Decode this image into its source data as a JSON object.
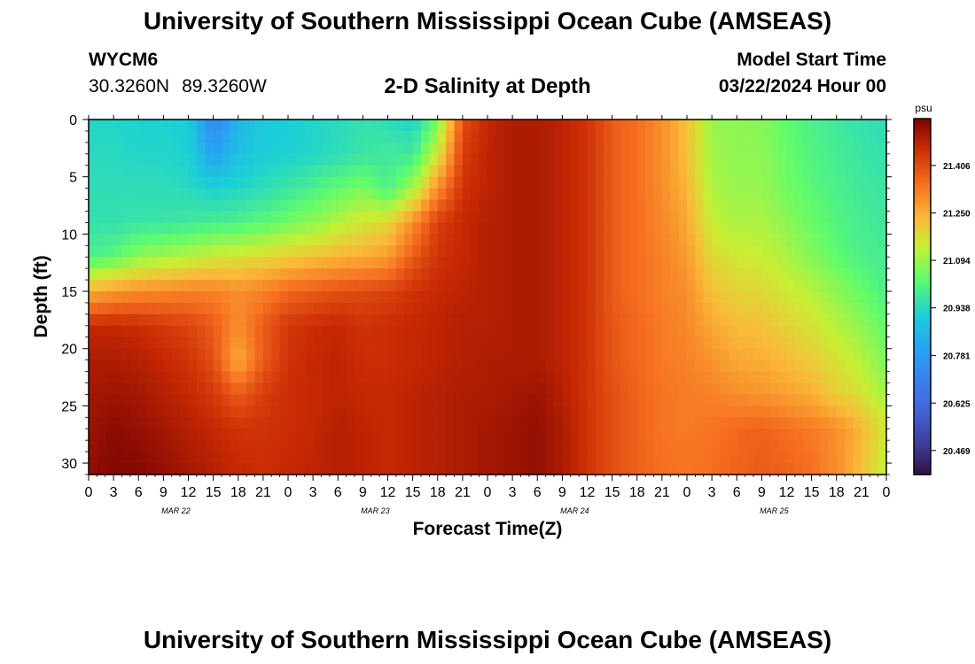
{
  "header": {
    "title": "University of Southern Mississippi Ocean Cube (AMSEAS)",
    "station_id": "WYCM6",
    "latitude": "30.3260N",
    "longitude": "89.3260W",
    "subtitle": "2-D Salinity at Depth",
    "model_start_label": "Model Start Time",
    "model_start_value": "03/22/2024 Hour 00"
  },
  "footer": {
    "title": "University of Southern Mississippi Ocean Cube (AMSEAS)"
  },
  "chart_data": {
    "type": "heatmap",
    "title": "2-D Salinity at Depth",
    "xlabel": "Forecast Time(Z)",
    "ylabel": "Depth (ft)",
    "x_hours": [
      0,
      96
    ],
    "x_tick_labels": [
      "0",
      "3",
      "6",
      "9",
      "12",
      "15",
      "18",
      "21",
      "0",
      "3",
      "6",
      "9",
      "12",
      "15",
      "18",
      "21",
      "0",
      "3",
      "6",
      "9",
      "12",
      "15",
      "18",
      "21",
      "0",
      "3",
      "6",
      "9",
      "12",
      "15",
      "18",
      "21",
      "0"
    ],
    "day_labels": [
      "MAR 22",
      "MAR 23",
      "MAR 24",
      "MAR 25"
    ],
    "ylim": [
      0,
      31
    ],
    "y_ticks": [
      0,
      5,
      10,
      15,
      20,
      25,
      30
    ],
    "colorbar": {
      "unit": "psu",
      "range": [
        20.39,
        21.56
      ],
      "ticks": [
        21.406,
        21.25,
        21.094,
        20.938,
        20.781,
        20.625,
        20.469
      ]
    },
    "depths_ft": [
      0,
      3,
      6,
      9,
      12,
      15,
      18,
      21,
      24,
      27,
      31
    ],
    "times_h": [
      0,
      3,
      6,
      9,
      12,
      15,
      18,
      21,
      24,
      27,
      30,
      33,
      36,
      39,
      42,
      45,
      48,
      51,
      54,
      57,
      60,
      63,
      66,
      69,
      72,
      75,
      78,
      81,
      84,
      87,
      90,
      93,
      96
    ],
    "salinity_psu": [
      [
        20.93,
        20.93,
        20.92,
        20.92,
        20.91,
        20.72,
        20.85,
        20.9,
        20.91,
        20.93,
        20.94,
        20.96,
        20.95,
        20.92,
        21.05,
        21.4,
        21.47,
        21.5,
        21.5,
        21.48,
        21.45,
        21.38,
        21.35,
        21.3,
        21.22,
        21.09,
        21.08,
        21.07,
        21.03,
        21.0,
        20.98,
        20.96,
        20.95
      ],
      [
        20.94,
        20.94,
        20.93,
        20.93,
        20.92,
        20.8,
        20.88,
        20.91,
        20.92,
        20.93,
        20.95,
        20.97,
        20.98,
        20.98,
        21.15,
        21.43,
        21.48,
        21.5,
        21.5,
        21.48,
        21.45,
        21.38,
        21.35,
        21.3,
        21.22,
        21.1,
        21.08,
        21.08,
        21.04,
        21.01,
        20.99,
        20.97,
        20.96
      ],
      [
        20.95,
        20.95,
        20.95,
        20.95,
        20.94,
        20.92,
        20.93,
        20.95,
        20.97,
        21.0,
        21.03,
        21.06,
        21.0,
        21.1,
        21.3,
        21.45,
        21.48,
        21.5,
        21.5,
        21.48,
        21.45,
        21.38,
        21.35,
        21.3,
        21.24,
        21.11,
        21.09,
        21.09,
        21.05,
        21.02,
        21.0,
        20.98,
        20.97
      ],
      [
        20.96,
        20.96,
        20.97,
        20.97,
        20.98,
        20.99,
        21.0,
        21.02,
        21.05,
        21.08,
        21.12,
        21.16,
        21.18,
        21.3,
        21.43,
        21.47,
        21.49,
        21.5,
        21.5,
        21.48,
        21.45,
        21.38,
        21.35,
        21.31,
        21.26,
        21.14,
        21.11,
        21.11,
        21.08,
        21.04,
        21.01,
        20.99,
        20.98
      ],
      [
        21.0,
        21.02,
        21.08,
        21.1,
        21.12,
        21.15,
        21.16,
        21.18,
        21.2,
        21.22,
        21.24,
        21.25,
        21.28,
        21.38,
        21.45,
        21.47,
        21.49,
        21.5,
        21.5,
        21.48,
        21.45,
        21.38,
        21.35,
        21.32,
        21.28,
        21.18,
        21.15,
        21.14,
        21.11,
        21.07,
        21.03,
        21.0,
        20.99
      ],
      [
        21.24,
        21.28,
        21.3,
        21.31,
        21.32,
        21.32,
        21.3,
        21.32,
        21.36,
        21.38,
        21.4,
        21.41,
        21.42,
        21.45,
        21.47,
        21.48,
        21.49,
        21.5,
        21.5,
        21.48,
        21.45,
        21.38,
        21.35,
        21.32,
        21.3,
        21.22,
        21.19,
        21.18,
        21.15,
        21.12,
        21.08,
        21.04,
        21.0
      ],
      [
        21.47,
        21.47,
        21.46,
        21.44,
        21.42,
        21.38,
        21.3,
        21.38,
        21.44,
        21.46,
        21.47,
        21.45,
        21.46,
        21.47,
        21.48,
        21.49,
        21.49,
        21.5,
        21.5,
        21.48,
        21.45,
        21.39,
        21.36,
        21.33,
        21.31,
        21.26,
        21.23,
        21.22,
        21.19,
        21.16,
        21.12,
        21.08,
        21.03
      ],
      [
        21.5,
        21.5,
        21.49,
        21.47,
        21.45,
        21.4,
        21.25,
        21.38,
        21.45,
        21.47,
        21.48,
        21.46,
        21.46,
        21.47,
        21.48,
        21.49,
        21.5,
        21.5,
        21.5,
        21.48,
        21.45,
        21.39,
        21.36,
        21.33,
        21.32,
        21.29,
        21.26,
        21.25,
        21.23,
        21.2,
        21.16,
        21.12,
        21.06
      ],
      [
        21.51,
        21.52,
        21.51,
        21.49,
        21.47,
        21.44,
        21.38,
        21.43,
        21.46,
        21.47,
        21.48,
        21.47,
        21.47,
        21.48,
        21.49,
        21.5,
        21.5,
        21.51,
        21.52,
        21.49,
        21.45,
        21.4,
        21.37,
        21.34,
        21.33,
        21.32,
        21.3,
        21.29,
        21.27,
        21.25,
        21.2,
        21.16,
        21.1
      ],
      [
        21.52,
        21.54,
        21.53,
        21.51,
        21.49,
        21.47,
        21.45,
        21.45,
        21.46,
        21.47,
        21.49,
        21.48,
        21.47,
        21.48,
        21.49,
        21.5,
        21.51,
        21.52,
        21.53,
        21.5,
        21.45,
        21.4,
        21.37,
        21.34,
        21.33,
        21.34,
        21.36,
        21.37,
        21.35,
        21.33,
        21.3,
        21.24,
        21.15
      ],
      [
        21.53,
        21.55,
        21.55,
        21.53,
        21.51,
        21.49,
        21.47,
        21.46,
        21.47,
        21.48,
        21.49,
        21.48,
        21.47,
        21.48,
        21.49,
        21.5,
        21.51,
        21.52,
        21.53,
        21.5,
        21.45,
        21.4,
        21.37,
        21.35,
        21.34,
        21.35,
        21.37,
        21.38,
        21.37,
        21.35,
        21.3,
        21.22,
        21.12
      ]
    ]
  }
}
